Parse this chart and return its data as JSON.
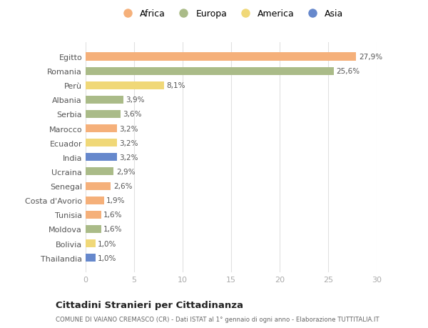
{
  "categories": [
    "Egitto",
    "Romania",
    "Perù",
    "Albania",
    "Serbia",
    "Marocco",
    "Ecuador",
    "India",
    "Ucraina",
    "Senegal",
    "Costa d'Avorio",
    "Tunisia",
    "Moldova",
    "Bolivia",
    "Thailandia"
  ],
  "values": [
    27.9,
    25.6,
    8.1,
    3.9,
    3.6,
    3.2,
    3.2,
    3.2,
    2.9,
    2.6,
    1.9,
    1.6,
    1.6,
    1.0,
    1.0
  ],
  "labels": [
    "27,9%",
    "25,6%",
    "8,1%",
    "3,9%",
    "3,6%",
    "3,2%",
    "3,2%",
    "3,2%",
    "2,9%",
    "2,6%",
    "1,9%",
    "1,6%",
    "1,6%",
    "1,0%",
    "1,0%"
  ],
  "continents": [
    "Africa",
    "Europa",
    "America",
    "Europa",
    "Europa",
    "Africa",
    "America",
    "Asia",
    "Europa",
    "Africa",
    "Africa",
    "Africa",
    "Europa",
    "America",
    "Asia"
  ],
  "colors": {
    "Africa": "#F5B07A",
    "Europa": "#AABB88",
    "America": "#F0D878",
    "Asia": "#6688CC"
  },
  "legend_order": [
    "Africa",
    "Europa",
    "America",
    "Asia"
  ],
  "title": "Cittadini Stranieri per Cittadinanza",
  "subtitle": "COMUNE DI VAIANO CREMASCO (CR) - Dati ISTAT al 1° gennaio di ogni anno - Elaborazione TUTTITALIA.IT",
  "xlim": [
    0,
    30
  ],
  "xticks": [
    0,
    5,
    10,
    15,
    20,
    25,
    30
  ],
  "background_color": "#ffffff",
  "grid_color": "#e0e0e0"
}
